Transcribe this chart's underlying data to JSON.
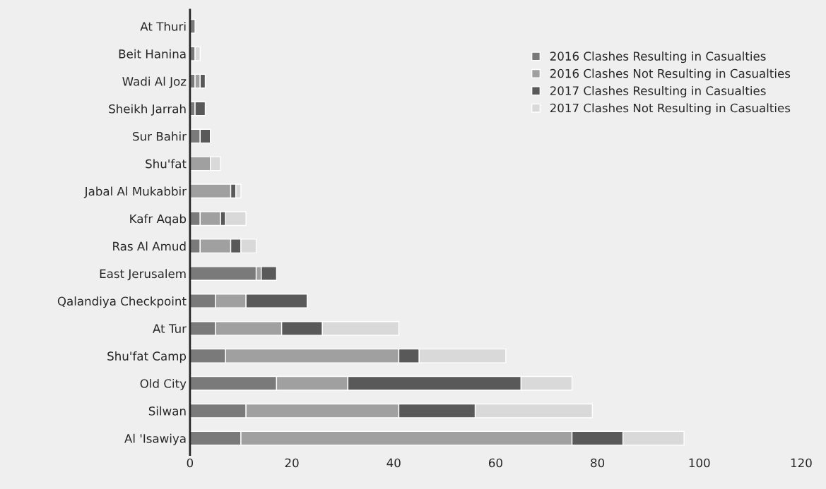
{
  "chart_data": {
    "type": "bar",
    "orientation": "horizontal",
    "stacked": true,
    "categories": [
      "At Thuri",
      "Beit Hanina",
      "Wadi Al Joz",
      "Sheikh Jarrah",
      "Sur Bahir",
      "Shu'fat",
      "Jabal Al Mukabbir",
      "Kafr Aqab",
      "Ras Al Amud",
      "East Jerusalem",
      "Qalandiya Checkpoint",
      "At Tur",
      "Shu'fat Camp",
      "Old City",
      "Silwan",
      "Al 'Isawiya"
    ],
    "series": [
      {
        "name": "2016 Clashes Resulting in Casualties",
        "color": "#7a7a7a",
        "values": [
          1,
          1,
          1,
          1,
          2,
          0,
          0,
          2,
          2,
          13,
          5,
          5,
          7,
          17,
          11,
          10
        ]
      },
      {
        "name": "2016 Clashes Not Resulting in Casualties",
        "color": "#a0a0a0",
        "values": [
          0,
          0,
          1,
          0,
          0,
          4,
          8,
          4,
          6,
          1,
          6,
          13,
          34,
          14,
          30,
          65
        ]
      },
      {
        "name": "2017 Clashes Resulting in Casualties",
        "color": "#595959",
        "values": [
          0,
          0,
          1,
          2,
          2,
          0,
          1,
          1,
          2,
          3,
          12,
          8,
          4,
          34,
          15,
          10
        ]
      },
      {
        "name": "2017 Clashes Not Resulting in Casualties",
        "color": "#d9d9d9",
        "values": [
          0,
          1,
          0,
          0,
          0,
          2,
          1,
          4,
          3,
          0,
          0,
          15,
          17,
          10,
          23,
          12
        ]
      }
    ],
    "xlim": [
      0,
      120
    ],
    "xticks": [
      0,
      20,
      40,
      60,
      80,
      100,
      120
    ],
    "grid": false,
    "legend": "top right"
  }
}
